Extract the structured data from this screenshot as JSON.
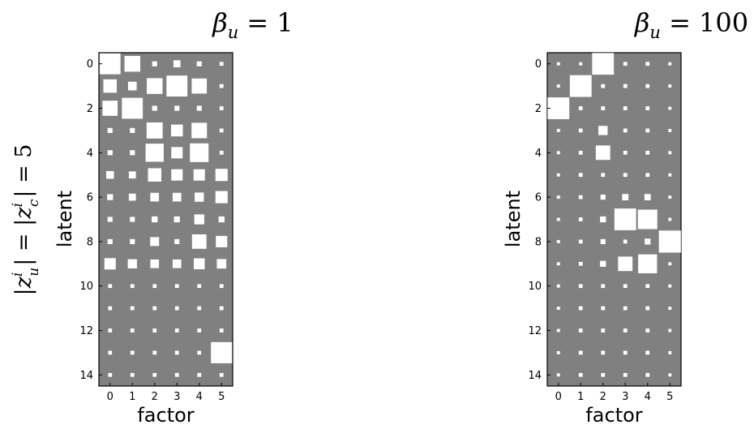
{
  "figure": {
    "row_label": "|z_u^i| = |z_c^i| = 5",
    "row_label_parts": {
      "left_bar": "|",
      "z1": "z",
      "sub1": "u",
      "sup1": "i",
      "mid": "| = |",
      "z2": "z",
      "sub2": "c",
      "sup2": "i",
      "right": "| = 5"
    }
  },
  "chart_data": [
    {
      "type": "heatmap",
      "style": "hinton",
      "title": "β_u = 1",
      "title_parts": {
        "beta": "β",
        "sub": "u",
        "rest": " = 1"
      },
      "xlabel": "factor",
      "ylabel": "latent",
      "x_ticks": [
        0,
        1,
        2,
        3,
        4,
        5
      ],
      "y_ticks": [
        0,
        2,
        4,
        6,
        8,
        10,
        12,
        14
      ],
      "n_factors": 6,
      "n_latents": 15,
      "background_color": "#808080",
      "box_color": "#ffffff",
      "value_scale_max": 1.0,
      "values": [
        [
          0.88,
          0.5,
          0.05,
          0.1,
          0.05,
          0.03
        ],
        [
          0.36,
          0.15,
          0.5,
          0.88,
          0.46,
          0.03
        ],
        [
          0.46,
          0.88,
          0.05,
          0.05,
          0.05,
          0.03
        ],
        [
          0.05,
          0.05,
          0.52,
          0.28,
          0.48,
          0.03
        ],
        [
          0.05,
          0.05,
          0.66,
          0.26,
          0.7,
          0.03
        ],
        [
          0.12,
          0.1,
          0.36,
          0.26,
          0.26,
          0.3
        ],
        [
          0.07,
          0.1,
          0.15,
          0.15,
          0.17,
          0.3
        ],
        [
          0.05,
          0.05,
          0.07,
          0.07,
          0.2,
          0.07
        ],
        [
          0.05,
          0.05,
          0.16,
          0.05,
          0.42,
          0.26
        ],
        [
          0.26,
          0.17,
          0.15,
          0.15,
          0.24,
          0.18
        ],
        [
          0.03,
          0.03,
          0.03,
          0.03,
          0.03,
          0.03
        ],
        [
          0.03,
          0.03,
          0.03,
          0.03,
          0.03,
          0.03
        ],
        [
          0.03,
          0.03,
          0.03,
          0.03,
          0.03,
          0.03
        ],
        [
          0.03,
          0.03,
          0.03,
          0.03,
          0.03,
          0.9
        ],
        [
          0.03,
          0.03,
          0.03,
          0.03,
          0.03,
          0.03
        ]
      ]
    },
    {
      "type": "heatmap",
      "style": "hinton",
      "title": "β_u = 100",
      "title_parts": {
        "beta": "β",
        "sub": "u",
        "rest": " = 100"
      },
      "xlabel": "factor",
      "ylabel": "latent",
      "x_ticks": [
        0,
        1,
        2,
        3,
        4,
        5
      ],
      "y_ticks": [
        0,
        2,
        4,
        6,
        8,
        10,
        12,
        14
      ],
      "n_factors": 6,
      "n_latents": 15,
      "background_color": "#808080",
      "box_color": "#ffffff",
      "value_scale_max": 1.0,
      "values": [
        [
          0.02,
          0.02,
          0.95,
          0.03,
          0.03,
          0.02
        ],
        [
          0.02,
          0.95,
          0.03,
          0.03,
          0.03,
          0.02
        ],
        [
          0.95,
          0.03,
          0.03,
          0.03,
          0.03,
          0.02
        ],
        [
          0.02,
          0.03,
          0.17,
          0.03,
          0.03,
          0.02
        ],
        [
          0.02,
          0.03,
          0.42,
          0.03,
          0.03,
          0.02
        ],
        [
          0.02,
          0.03,
          0.03,
          0.03,
          0.03,
          0.02
        ],
        [
          0.02,
          0.03,
          0.05,
          0.08,
          0.08,
          0.02
        ],
        [
          0.02,
          0.03,
          0.07,
          0.95,
          0.76,
          0.02
        ],
        [
          0.02,
          0.03,
          0.05,
          0.03,
          0.07,
          0.98
        ],
        [
          0.02,
          0.03,
          0.07,
          0.42,
          0.72,
          0.02
        ],
        [
          0.02,
          0.03,
          0.03,
          0.03,
          0.03,
          0.02
        ],
        [
          0.02,
          0.03,
          0.03,
          0.03,
          0.03,
          0.02
        ],
        [
          0.02,
          0.03,
          0.03,
          0.03,
          0.03,
          0.02
        ],
        [
          0.02,
          0.03,
          0.03,
          0.03,
          0.03,
          0.02
        ],
        [
          0.02,
          0.03,
          0.03,
          0.03,
          0.03,
          0.02
        ]
      ]
    }
  ]
}
